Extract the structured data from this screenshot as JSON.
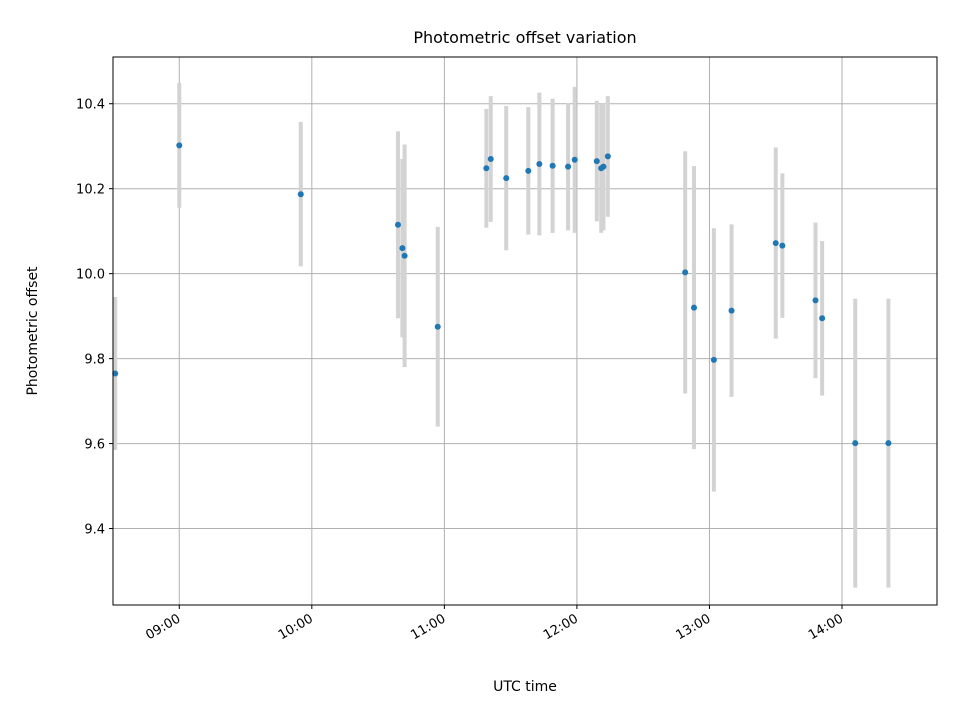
{
  "chart_data": {
    "type": "scatter",
    "title": "Photometric offset variation",
    "xlabel": "UTC time",
    "ylabel": "Photometric offset",
    "x_axis_type": "time",
    "x_ticks": [
      "09:00",
      "10:00",
      "11:00",
      "12:00",
      "13:00",
      "14:00"
    ],
    "xlim": [
      "08:30",
      "14:43"
    ],
    "y_ticks": [
      "9.4",
      "9.6",
      "9.8",
      "10.0",
      "10.2",
      "10.4"
    ],
    "ylim": [
      9.22,
      10.51
    ],
    "grid": true,
    "error_bars": true,
    "colors": {
      "point": "#1f77b4",
      "error_bar": "#d3d3d3"
    },
    "series": [
      {
        "points": [
          {
            "x": "08:31",
            "y": 9.765,
            "err": 0.18
          },
          {
            "x": "09:00",
            "y": 10.302,
            "err": 0.147
          },
          {
            "x": "09:55",
            "y": 10.187,
            "err": 0.17
          },
          {
            "x": "10:39",
            "y": 10.115,
            "err": 0.22
          },
          {
            "x": "10:41",
            "y": 10.06,
            "err": 0.21
          },
          {
            "x": "10:42",
            "y": 10.042,
            "err": 0.262
          },
          {
            "x": "10:57",
            "y": 9.875,
            "err": 0.235
          },
          {
            "x": "11:19",
            "y": 10.248,
            "err": 0.14
          },
          {
            "x": "11:21",
            "y": 10.27,
            "err": 0.148
          },
          {
            "x": "11:28",
            "y": 10.225,
            "err": 0.17
          },
          {
            "x": "11:38",
            "y": 10.242,
            "err": 0.15
          },
          {
            "x": "11:43",
            "y": 10.258,
            "err": 0.168
          },
          {
            "x": "11:49",
            "y": 10.254,
            "err": 0.158
          },
          {
            "x": "11:56",
            "y": 10.252,
            "err": 0.15
          },
          {
            "x": "11:59",
            "y": 10.268,
            "err": 0.172
          },
          {
            "x": "12:09",
            "y": 10.265,
            "err": 0.142
          },
          {
            "x": "12:11",
            "y": 10.248,
            "err": 0.152
          },
          {
            "x": "12:12",
            "y": 10.252,
            "err": 0.15
          },
          {
            "x": "12:14",
            "y": 10.276,
            "err": 0.142
          },
          {
            "x": "12:49",
            "y": 10.003,
            "err": 0.285
          },
          {
            "x": "12:53",
            "y": 9.92,
            "err": 0.333
          },
          {
            "x": "13:02",
            "y": 9.797,
            "err": 0.31
          },
          {
            "x": "13:10",
            "y": 9.913,
            "err": 0.203
          },
          {
            "x": "13:30",
            "y": 10.072,
            "err": 0.225
          },
          {
            "x": "13:33",
            "y": 10.066,
            "err": 0.17
          },
          {
            "x": "13:48",
            "y": 9.937,
            "err": 0.183
          },
          {
            "x": "13:51",
            "y": 9.895,
            "err": 0.182
          },
          {
            "x": "14:06",
            "y": 9.601,
            "err": 0.34
          },
          {
            "x": "14:21",
            "y": 9.601,
            "err": 0.34
          }
        ]
      }
    ]
  }
}
